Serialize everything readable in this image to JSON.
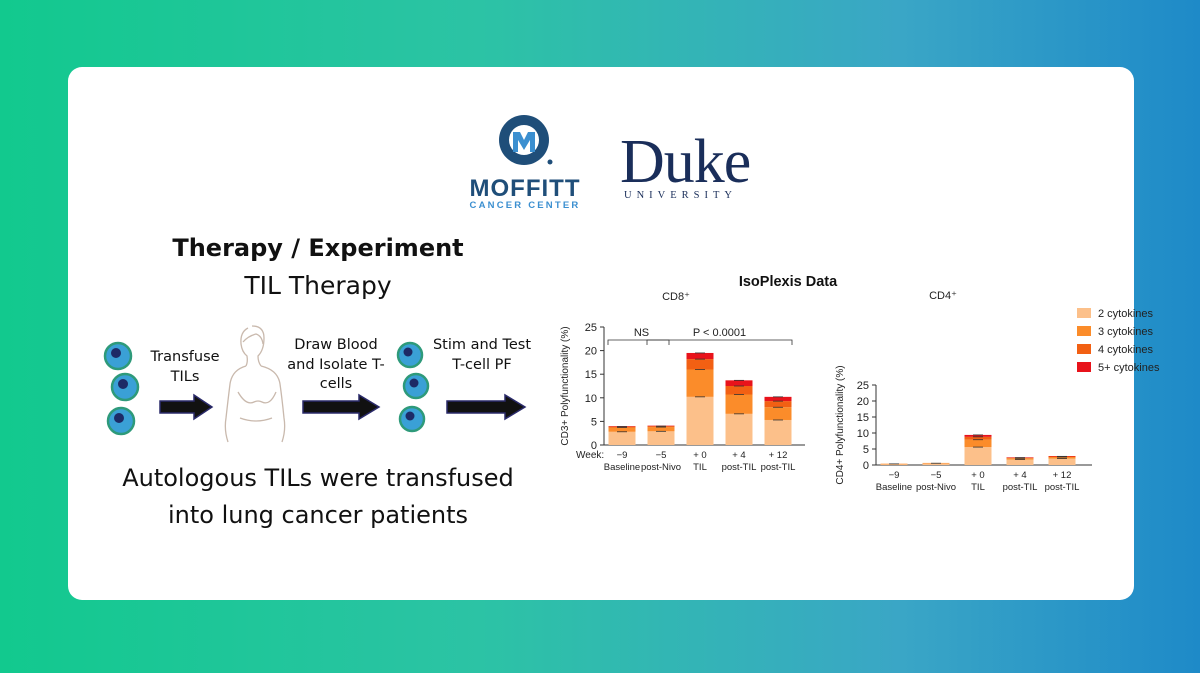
{
  "logos": {
    "moffitt_name": "MOFFITT",
    "moffitt_sub": "CANCER CENTER",
    "duke_name": "Duke",
    "duke_sub": "UNIVERSITY"
  },
  "diagram": {
    "title": "Therapy / Experiment",
    "subtitle": "TIL Therapy",
    "steps": [
      {
        "label_lines": [
          "Transfuse",
          "TILs"
        ]
      },
      {
        "label_lines": [
          "Draw Blood",
          "and Isolate T-",
          "cells"
        ]
      },
      {
        "label_lines": [
          "Stim and Test",
          "T-cell PF"
        ]
      }
    ],
    "caption_lines": [
      "Autologous TILs were transfused",
      "into lung cancer patients"
    ],
    "colors": {
      "cell_fill": "#3aa0d6",
      "cell_inner": "#1d2a66",
      "cell_ring": "#2e9a7a",
      "arrow": "#111111"
    }
  },
  "charts_heading": "IsoPlexis Data",
  "chart_data": [
    {
      "type": "bar",
      "stacked": true,
      "title": "CD8⁺",
      "ylabel": "CD3+ Polyfunctionality (%)",
      "xlabel": "Week:",
      "ylim": [
        0,
        25
      ],
      "yticks": [
        0,
        5,
        10,
        15,
        20,
        25
      ],
      "categories": [
        {
          "week": "−9",
          "label": "Baseline"
        },
        {
          "week": "−5",
          "label": "post-Nivo"
        },
        {
          "week": "+ 0",
          "label": "TIL"
        },
        {
          "week": "+ 4",
          "label": "post-TIL"
        },
        {
          "week": "+ 12",
          "label": "post-TIL"
        }
      ],
      "series": [
        {
          "name": "2 cytokines",
          "color": "#fcc08a",
          "values": [
            2.8,
            2.9,
            10.2,
            6.6,
            5.3
          ]
        },
        {
          "name": "3 cytokines",
          "color": "#fb8c2a",
          "values": [
            0.9,
            0.9,
            5.8,
            4.1,
            2.7
          ]
        },
        {
          "name": "4 cytokines",
          "color": "#f26013",
          "values": [
            0.2,
            0.2,
            2.2,
            1.8,
            1.3
          ]
        },
        {
          "name": "5+ cytokines",
          "color": "#e8131b",
          "values": [
            0.1,
            0.1,
            1.3,
            1.2,
            0.9
          ]
        }
      ],
      "annotations": [
        {
          "text": "NS",
          "from": 0,
          "to": 1
        },
        {
          "text": "P < 0.0001",
          "from": 1,
          "to": 4
        }
      ]
    },
    {
      "type": "bar",
      "stacked": true,
      "title": "CD4⁺",
      "ylabel": "CD4+ Polyfunctionality (%)",
      "xlabel": "",
      "ylim": [
        0,
        25
      ],
      "yticks": [
        0,
        5,
        10,
        15,
        20,
        25
      ],
      "categories": [
        {
          "week": "−9",
          "label": "Baseline"
        },
        {
          "week": "−5",
          "label": "post-Nivo"
        },
        {
          "week": "+ 0",
          "label": "TIL"
        },
        {
          "week": "+ 4",
          "label": "post-TIL"
        },
        {
          "week": "+ 12",
          "label": "post-TIL"
        }
      ],
      "series": [
        {
          "name": "2 cytokines",
          "color": "#fcc08a",
          "values": [
            0.35,
            0.55,
            5.6,
            1.7,
            2.0
          ]
        },
        {
          "name": "3 cytokines",
          "color": "#fb8c2a",
          "values": [
            0.05,
            0.1,
            2.3,
            0.4,
            0.5
          ]
        },
        {
          "name": "4 cytokines",
          "color": "#f26013",
          "values": [
            0.0,
            0.0,
            0.9,
            0.2,
            0.2
          ]
        },
        {
          "name": "5+ cytokines",
          "color": "#e8131b",
          "values": [
            0.0,
            0.0,
            0.6,
            0.1,
            0.1
          ]
        }
      ],
      "legend_position": "top-right"
    }
  ]
}
